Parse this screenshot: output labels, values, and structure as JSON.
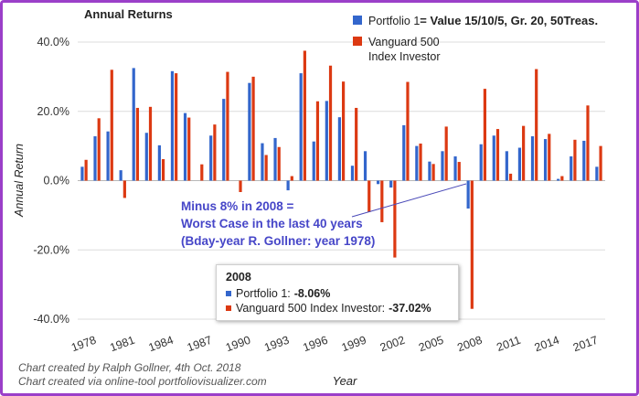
{
  "chart_data": {
    "type": "bar",
    "title": "Annual Returns",
    "xlabel": "Year",
    "ylabel": "Annual Return",
    "ylim": [
      -40,
      40
    ],
    "yticks": [
      "40.0%",
      "20.0%",
      "0.0%",
      "-20.0%",
      "-40.0%"
    ],
    "x_tick_labels": [
      "1978",
      "1981",
      "1984",
      "1987",
      "1990",
      "1993",
      "1996",
      "1999",
      "2002",
      "2005",
      "2008",
      "2011",
      "2014",
      "2017"
    ],
    "grid": true,
    "legend_position": "top-right",
    "categories": [
      1978,
      1979,
      1980,
      1981,
      1982,
      1983,
      1984,
      1985,
      1986,
      1987,
      1988,
      1989,
      1990,
      1991,
      1992,
      1993,
      1994,
      1995,
      1996,
      1997,
      1998,
      1999,
      2000,
      2001,
      2002,
      2003,
      2004,
      2005,
      2006,
      2007,
      2008,
      2009,
      2010,
      2011,
      2012,
      2013,
      2014,
      2015,
      2016,
      2017,
      2018
    ],
    "series": [
      {
        "name": "Portfolio 1",
        "legend_text": "Portfolio 1",
        "legend_bold_text": "= Value 15/10/5, Gr. 20, 50Treas.",
        "color": "#3366cc",
        "values": [
          4,
          12.8,
          14.2,
          3,
          32.5,
          13.8,
          10.2,
          31.6,
          19.5,
          0,
          13,
          23.6,
          0,
          28.2,
          10.8,
          12.3,
          -2.8,
          31,
          11.3,
          23,
          18.3,
          4.3,
          8.5,
          -1,
          -2,
          16,
          10,
          5.5,
          8.5,
          7,
          -8.06,
          10.5,
          13,
          8.5,
          9.5,
          12.8,
          12,
          0.5,
          7,
          11.5,
          4
        ]
      },
      {
        "name": "Vanguard 500 Index Investor",
        "legend_text": "Vanguard 500 Index Investor",
        "legend_line1": "Vanguard 500",
        "legend_line2": "Index Investor",
        "color": "#dc3912",
        "values": [
          6,
          18,
          32,
          -5,
          21,
          21.3,
          6.2,
          31,
          18.2,
          4.7,
          16.2,
          31.4,
          -3.3,
          30,
          7.4,
          9.7,
          1.3,
          37.5,
          22.9,
          33.2,
          28.6,
          21,
          -9.1,
          -12,
          -22.2,
          28.5,
          10.7,
          4.8,
          15.6,
          5.4,
          -37.02,
          26.5,
          14.9,
          2,
          15.8,
          32.2,
          13.5,
          1.3,
          11.8,
          21.7,
          10
        ]
      }
    ],
    "annotation": {
      "lines": [
        "Minus 8% in 2008 =",
        "Worst Case in the last 40 years",
        "(Bday-year R. Gollner: year 1978)"
      ]
    },
    "tooltip": {
      "title": "2008",
      "rows": [
        {
          "label": "Portfolio 1:",
          "value": "-8.06%",
          "color": "#3366cc"
        },
        {
          "label": "Vanguard 500 Index Investor:",
          "value": "-37.02%",
          "color": "#dc3912"
        }
      ]
    },
    "credits": [
      "Chart created by Ralph Gollner, 4th Oct. 2018",
      "Chart created via online-tool portfoliovisualizer.com"
    ]
  }
}
